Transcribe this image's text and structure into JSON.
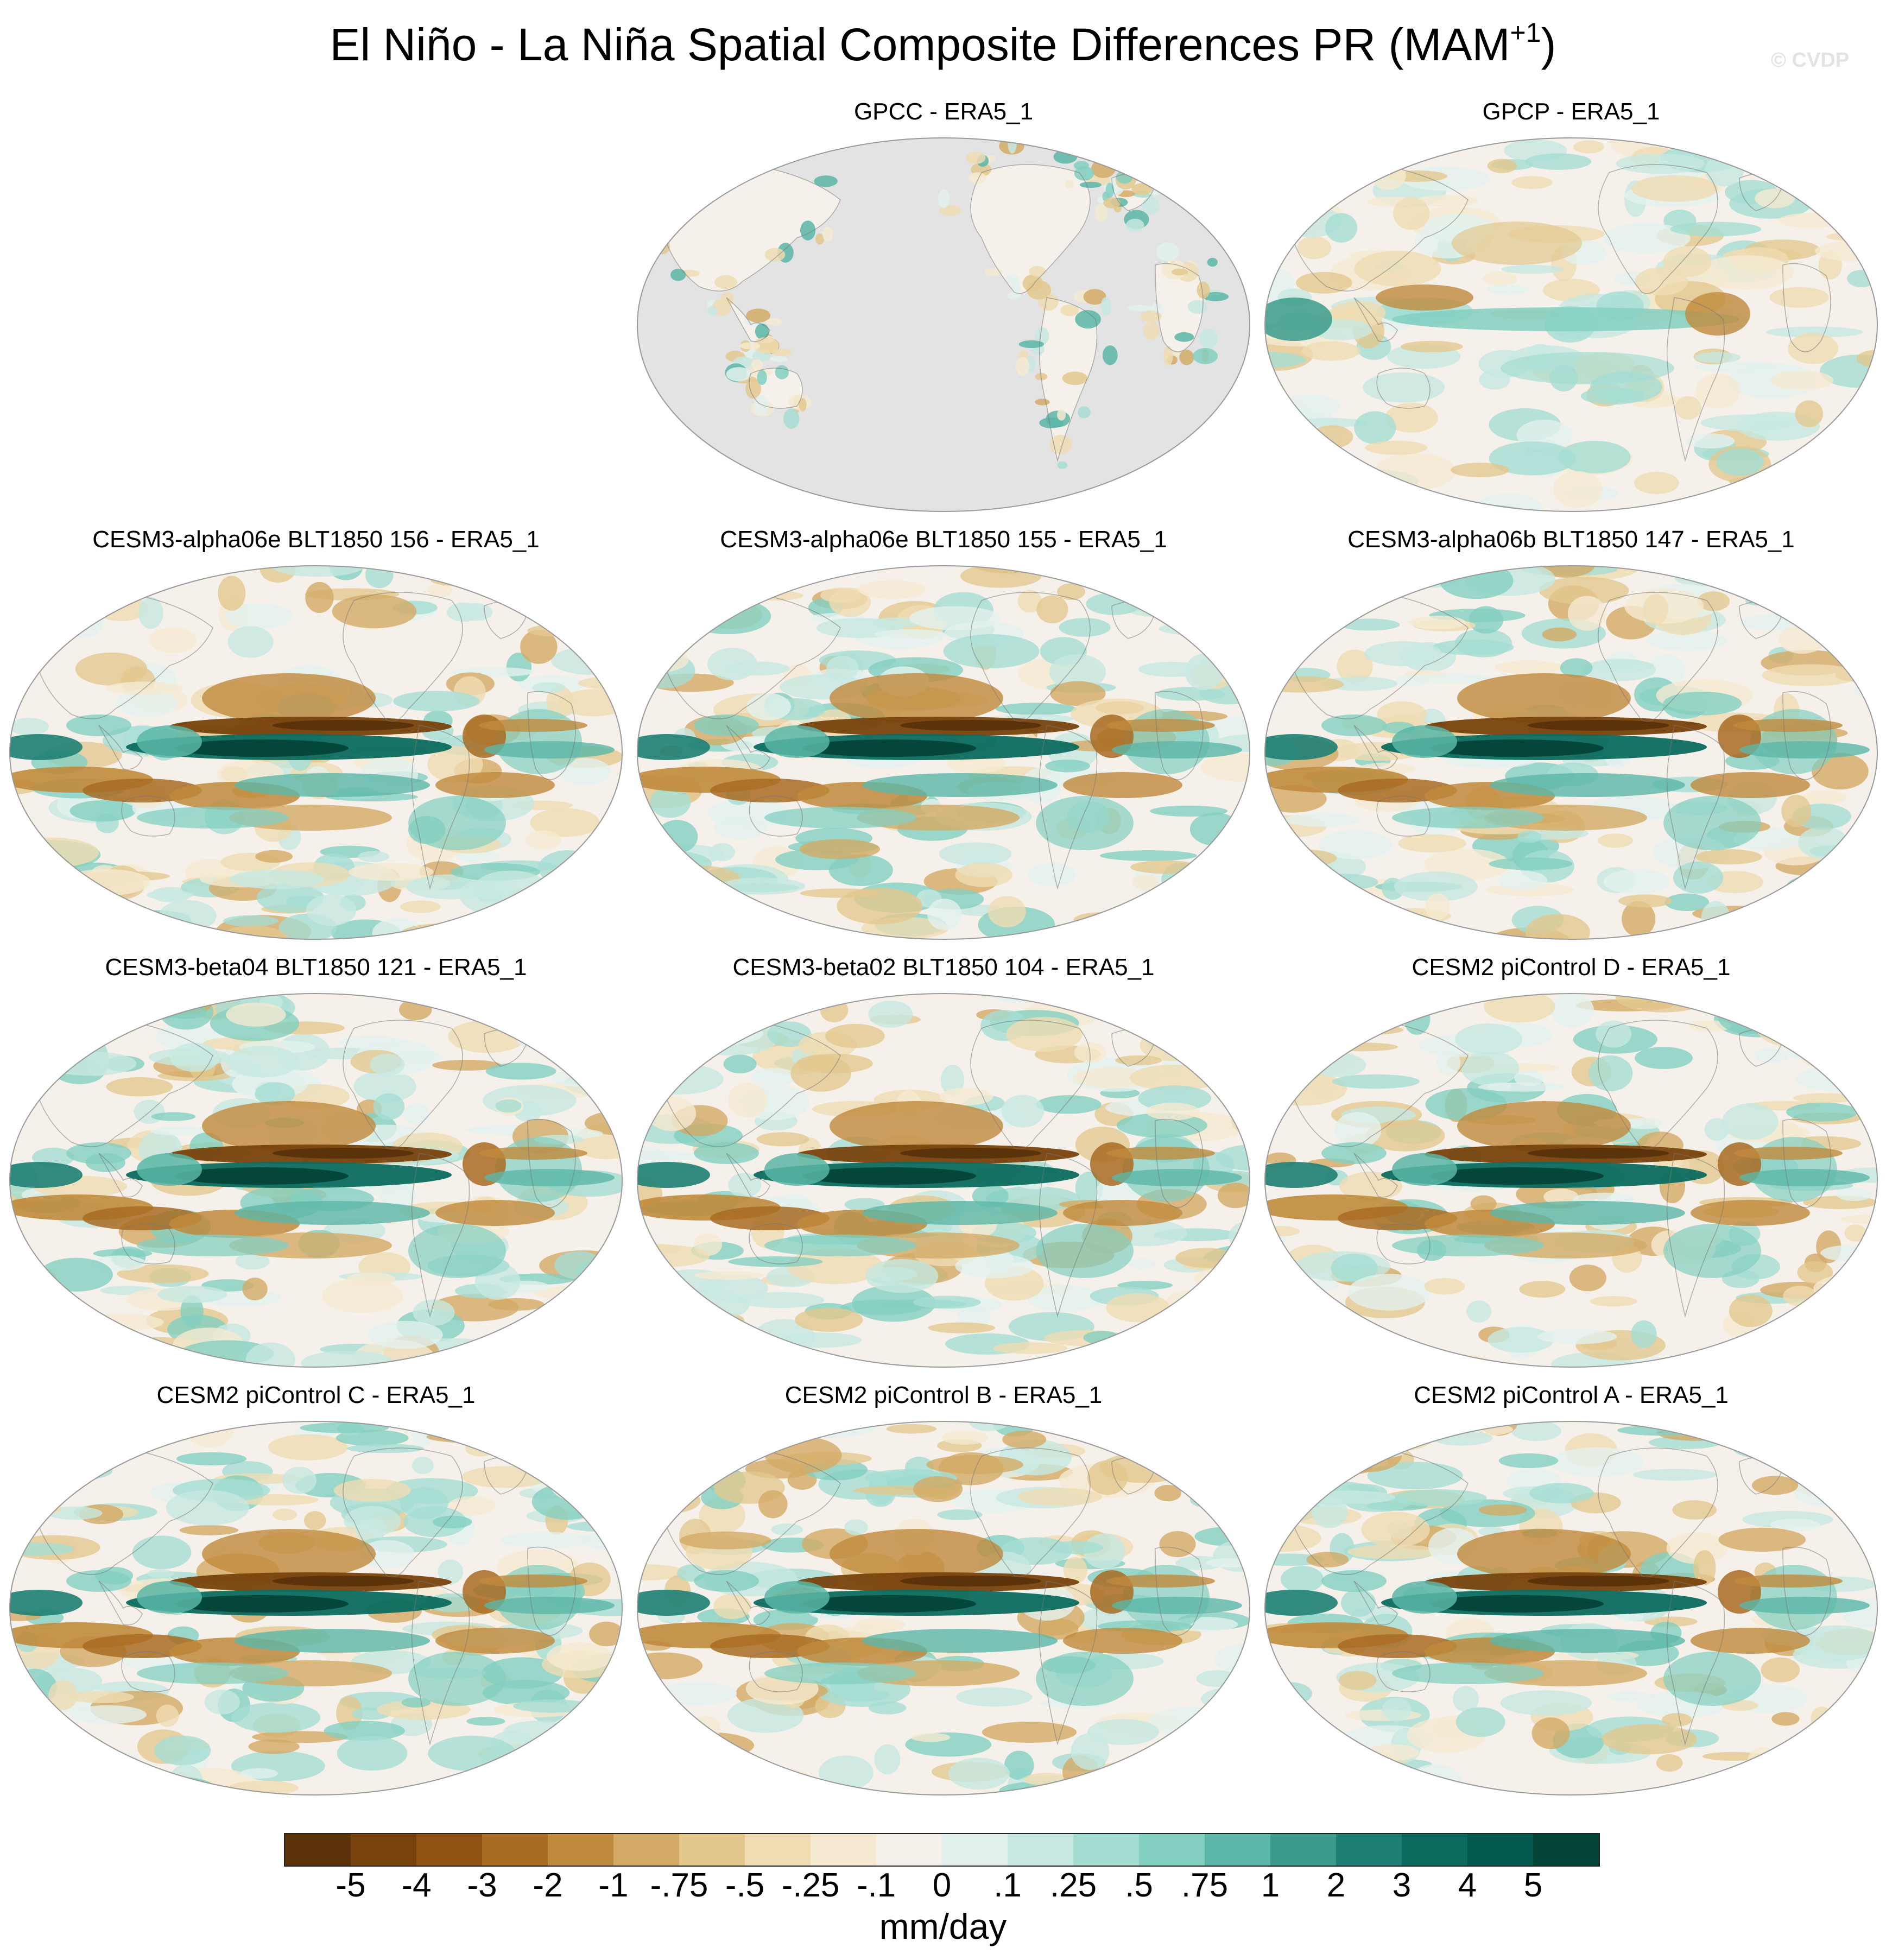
{
  "title": {
    "main": "El Niño - La Niña Spatial Composite Differences PR (MAM",
    "superscript": "+1",
    "close": ")"
  },
  "watermark": "© CVDP",
  "chart_data": {
    "type": "heatmap",
    "projection": "global map, Pacific-centered",
    "panels": [
      {
        "title": "GPCC - ERA5_1",
        "row": 0,
        "col": 1,
        "variant": "land-only"
      },
      {
        "title": "GPCP - ERA5_1",
        "row": 0,
        "col": 2,
        "variant": "weak"
      },
      {
        "title": "CESM3-alpha06e BLT1850 156 - ERA5_1",
        "row": 1,
        "col": 0,
        "variant": "model"
      },
      {
        "title": "CESM3-alpha06e BLT1850 155 - ERA5_1",
        "row": 1,
        "col": 1,
        "variant": "model"
      },
      {
        "title": "CESM3-alpha06b BLT1850 147 - ERA5_1",
        "row": 1,
        "col": 2,
        "variant": "model"
      },
      {
        "title": "CESM3-beta04 BLT1850 121 - ERA5_1",
        "row": 2,
        "col": 0,
        "variant": "model"
      },
      {
        "title": "CESM3-beta02 BLT1850 104 - ERA5_1",
        "row": 2,
        "col": 1,
        "variant": "model"
      },
      {
        "title": "CESM2 piControl D - ERA5_1",
        "row": 2,
        "col": 2,
        "variant": "model"
      },
      {
        "title": "CESM2 piControl C - ERA5_1",
        "row": 3,
        "col": 0,
        "variant": "model"
      },
      {
        "title": "CESM2 piControl B - ERA5_1",
        "row": 3,
        "col": 1,
        "variant": "model"
      },
      {
        "title": "CESM2 piControl A - ERA5_1",
        "row": 3,
        "col": 2,
        "variant": "model"
      }
    ],
    "colorbar": {
      "units": "mm/day",
      "labels": [
        "-5",
        "-4",
        "-3",
        "-2",
        "-1",
        "-.75",
        "-.5",
        "-.25",
        "-.1",
        "0",
        ".1",
        ".25",
        ".5",
        ".75",
        "1",
        "2",
        "3",
        "4",
        "5"
      ],
      "colors": [
        "#5a3109",
        "#78420d",
        "#8f5413",
        "#a86b22",
        "#c08a3c",
        "#d3aa65",
        "#e3c88e",
        "#efdcb3",
        "#f5ead1",
        "#f5f1ea",
        "#e3f1ee",
        "#c7e8e1",
        "#a5ddd3",
        "#83cfc1",
        "#5bb6a7",
        "#3a9b8b",
        "#1e8074",
        "#0c6b5f",
        "#045a4e",
        "#034438"
      ]
    }
  }
}
